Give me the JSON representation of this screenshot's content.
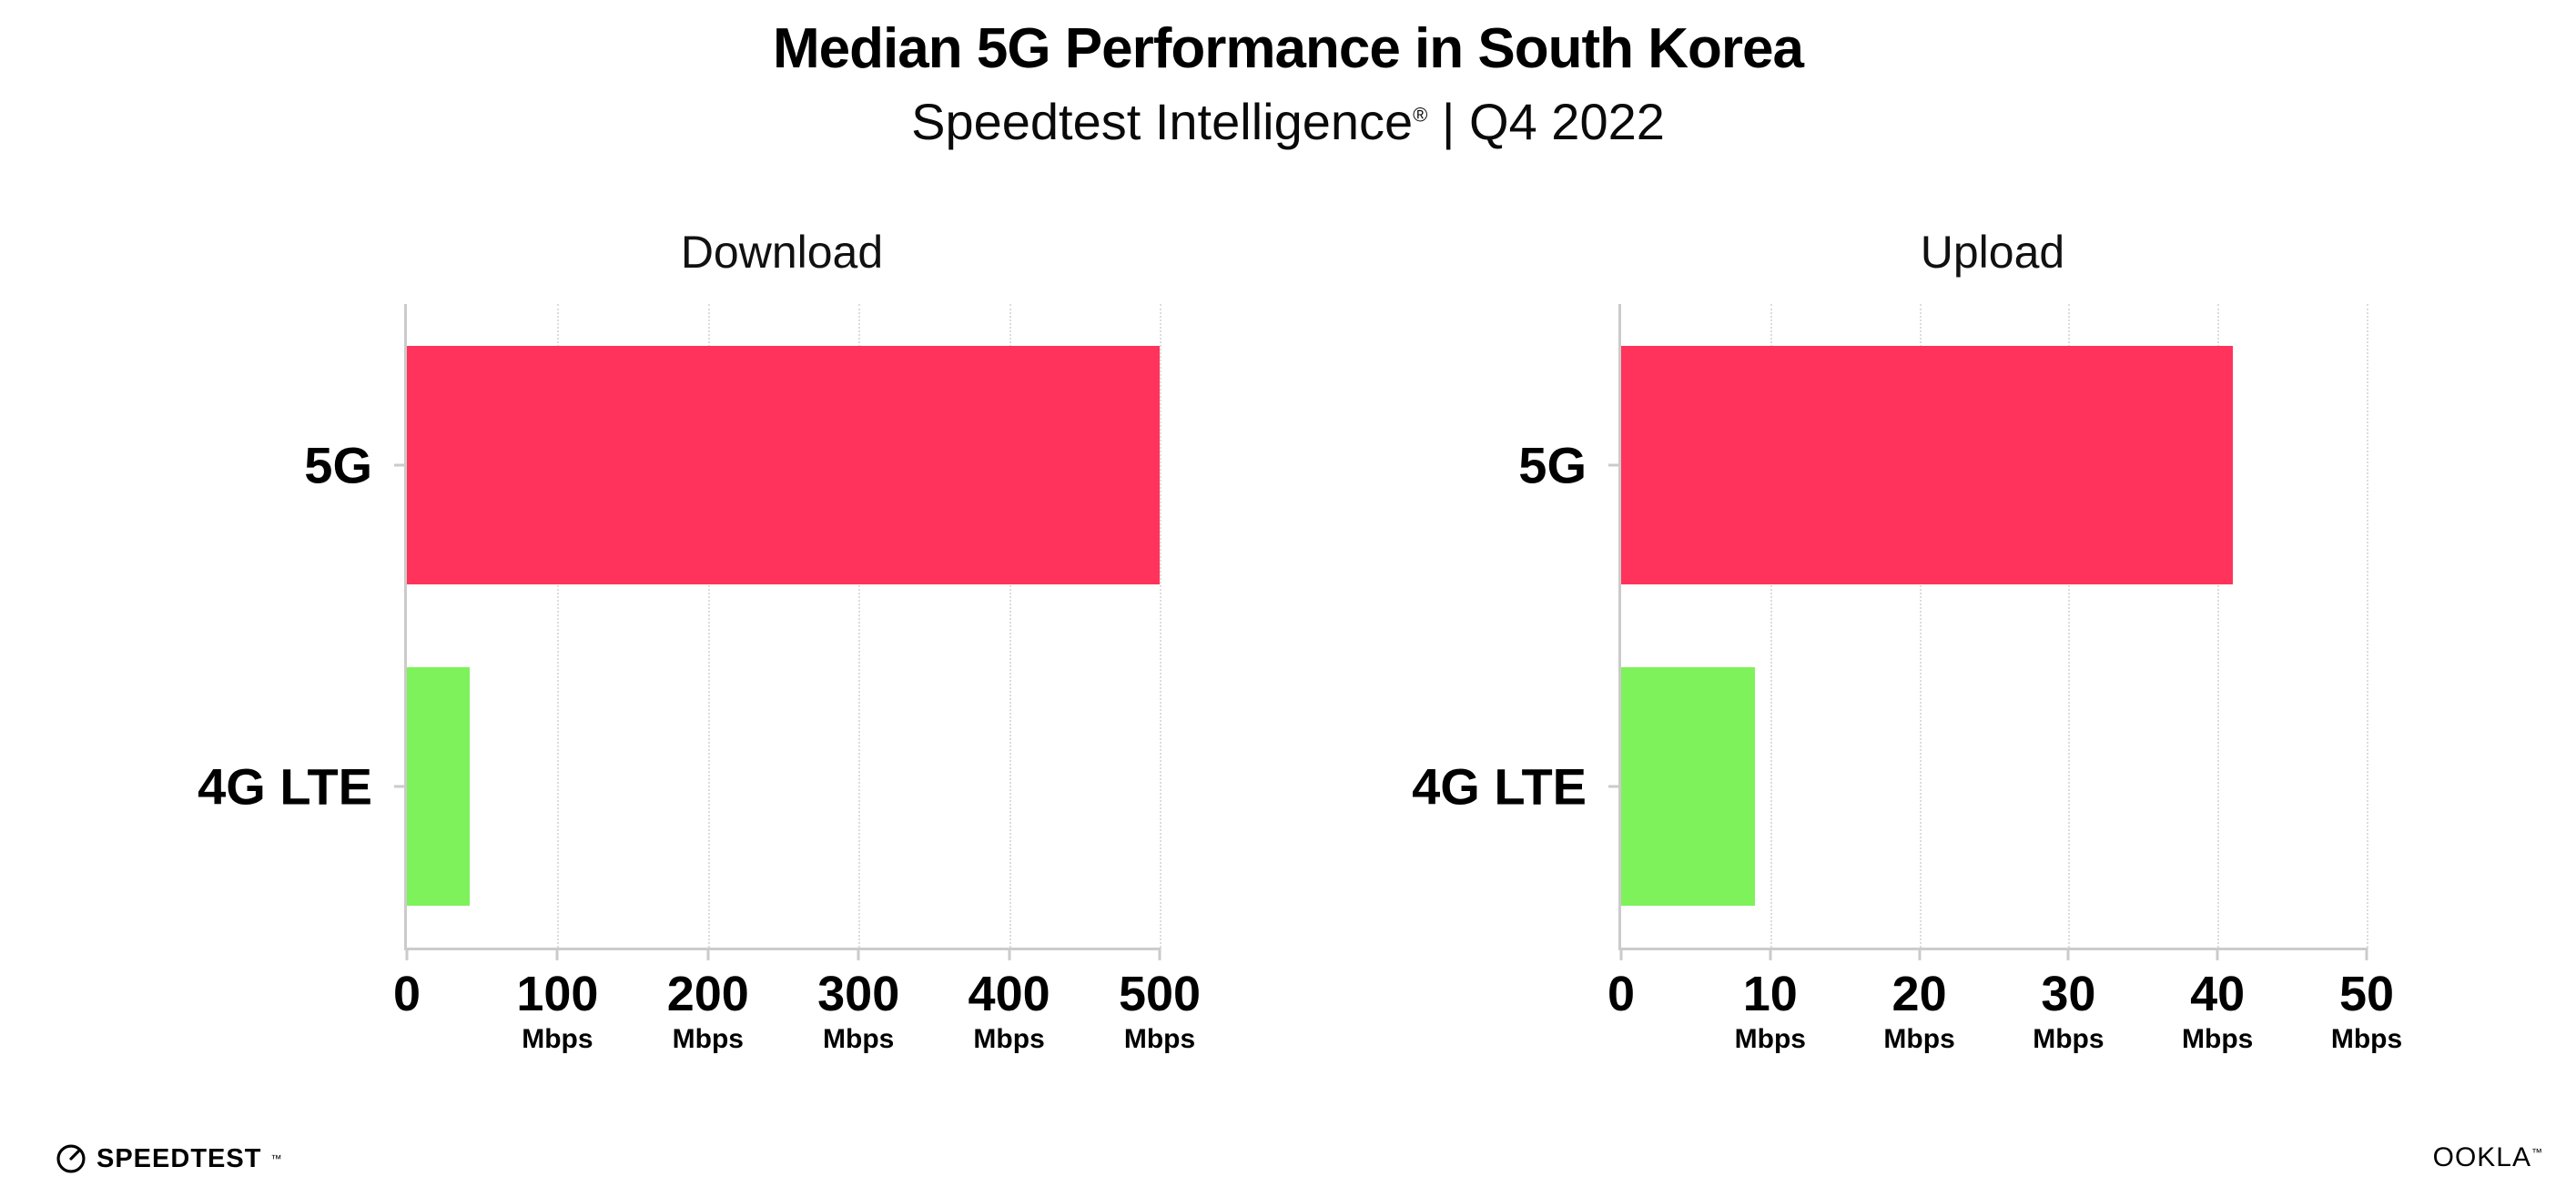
{
  "header": {
    "title": "Median 5G Performance in South Korea",
    "subtitle_brand": "Speedtest Intelligence",
    "subtitle_reg": "®",
    "subtitle_rest": " | Q4 2022"
  },
  "colors": {
    "bar_5g": "#ff335b",
    "bar_4g_lte": "#7df25a",
    "axis": "#cbcbcb",
    "gridline": "#dcdcdc",
    "text": "#000000",
    "background": "#ffffff"
  },
  "chart_data": [
    {
      "type": "bar",
      "orientation": "horizontal",
      "title": "Download",
      "categories": [
        "5G",
        "4G LTE"
      ],
      "values": [
        500,
        42
      ],
      "unit": "Mbps",
      "xlim": [
        0,
        500
      ],
      "xticks": [
        0,
        100,
        200,
        300,
        400,
        500
      ],
      "bar_colors": [
        "#ff335b",
        "#7df25a"
      ],
      "grid": true,
      "legend": "none"
    },
    {
      "type": "bar",
      "orientation": "horizontal",
      "title": "Upload",
      "categories": [
        "5G",
        "4G LTE"
      ],
      "values": [
        41,
        9
      ],
      "unit": "Mbps",
      "xlim": [
        0,
        50
      ],
      "xticks": [
        0,
        10,
        20,
        30,
        40,
        50
      ],
      "bar_colors": [
        "#ff335b",
        "#7df25a"
      ],
      "grid": true,
      "legend": "none"
    }
  ],
  "footer": {
    "speedtest_label": "SPEEDTEST",
    "speedtest_tm": "™",
    "ookla_label": "OOKLA",
    "ookla_tm": "™"
  }
}
